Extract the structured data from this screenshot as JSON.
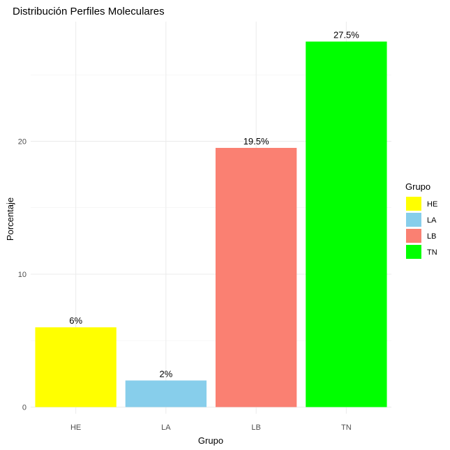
{
  "chart_data": {
    "type": "bar",
    "title": "Distribución Perfiles Moleculares",
    "xlabel": "Grupo",
    "ylabel": "Porcentaje",
    "categories": [
      "HE",
      "LA",
      "LB",
      "TN"
    ],
    "values": [
      6,
      2,
      19.5,
      27.5
    ],
    "data_labels": [
      "6%",
      "2%",
      "19.5%",
      "27.5%"
    ],
    "colors": [
      "#FFFF00",
      "#87CEEB",
      "#FA8072",
      "#00FF00"
    ],
    "y_ticks": [
      0,
      10,
      20
    ],
    "y_tick_labels": [
      "0",
      "10",
      "20"
    ],
    "ylim": [
      -0.5,
      29
    ],
    "grid": true,
    "legend": {
      "title": "Grupo",
      "position": "right",
      "entries": [
        "HE",
        "LA",
        "LB",
        "TN"
      ]
    }
  }
}
